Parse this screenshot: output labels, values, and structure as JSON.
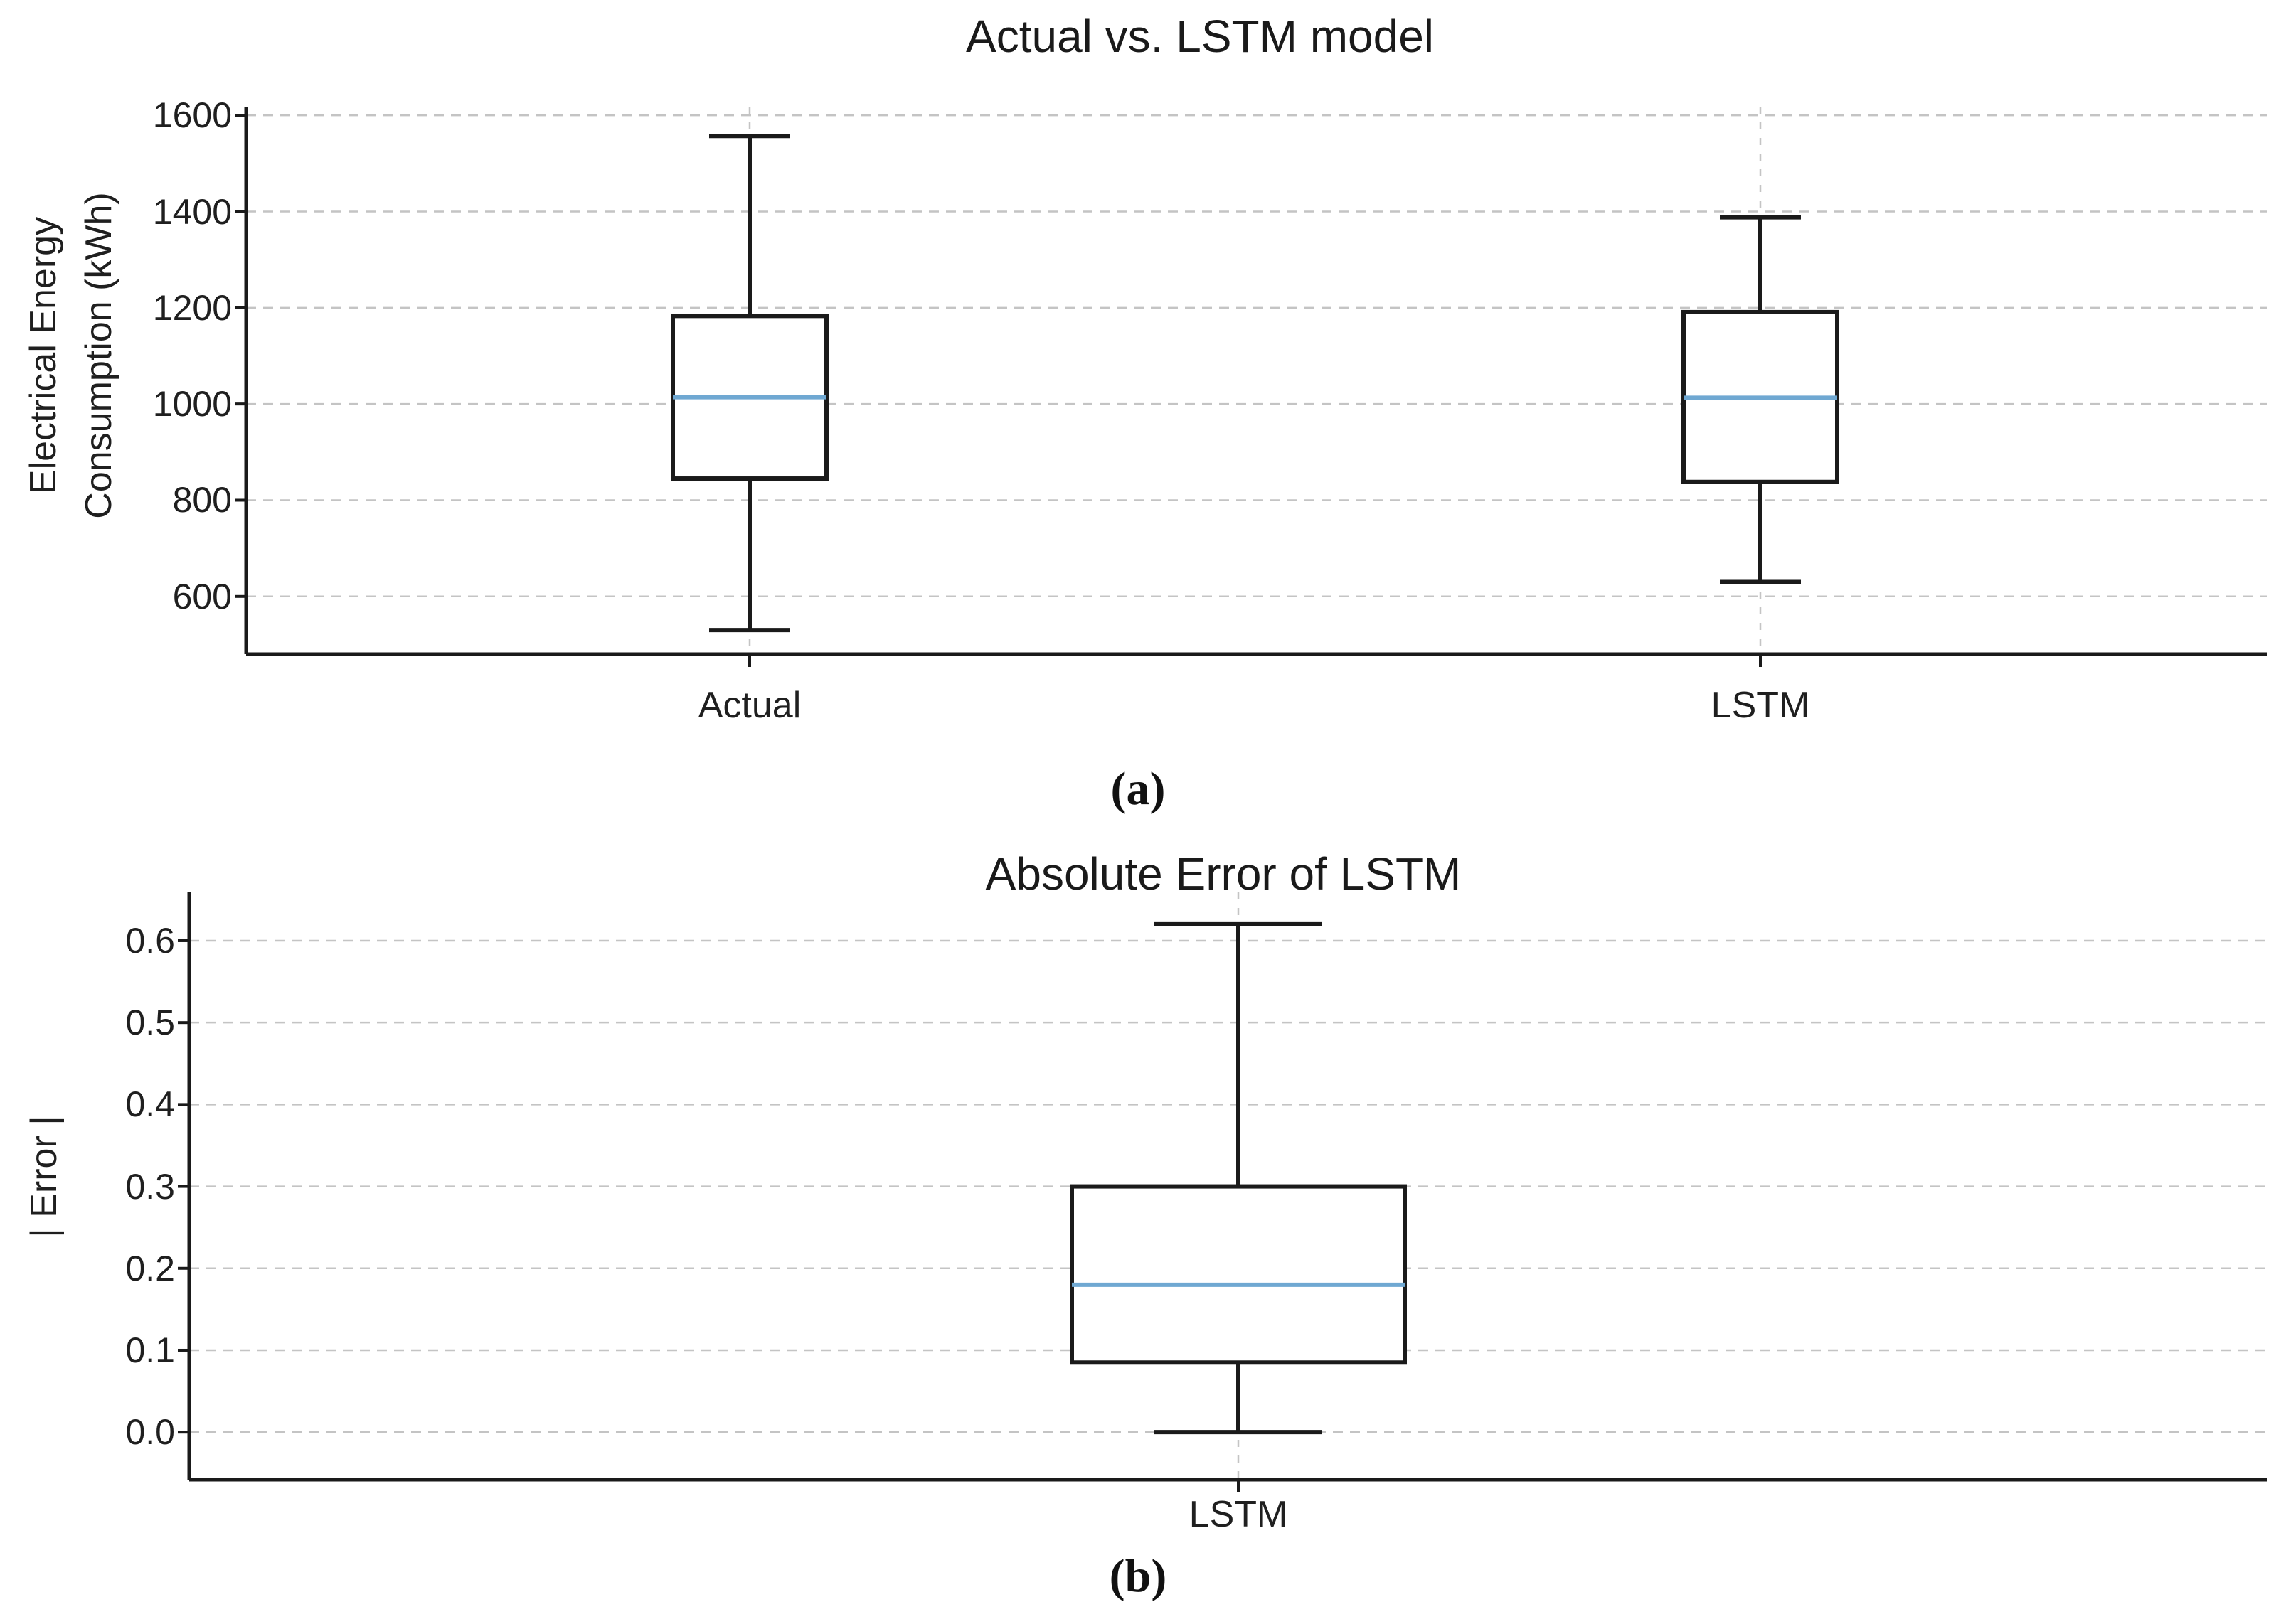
{
  "page": {
    "background": "#ffffff"
  },
  "colors": {
    "box_stroke": "#1a1a1a",
    "median": "#6fa8d2",
    "grid": "#c4c4c4",
    "text": "#1f1f1f",
    "spine": "#1a1a1a"
  },
  "chart_data": [
    {
      "type": "box",
      "title": "Actual vs. LSTM model",
      "ylabel_lines": [
        "Electrical Energy",
        "Consumption (kWh)"
      ],
      "panel_label": "(a)",
      "categories": [
        "Actual",
        "LSTM"
      ],
      "series": [
        {
          "name": "Actual",
          "whisker_low": 530,
          "q1": 845,
          "median": 1014,
          "q3": 1183,
          "whisker_high": 1557
        },
        {
          "name": "LSTM",
          "whisker_low": 630,
          "q1": 838,
          "median": 1013,
          "q3": 1191,
          "whisker_high": 1388
        }
      ],
      "yticks": [
        600,
        800,
        1000,
        1200,
        1400,
        1600
      ],
      "ytick_labels": [
        "600",
        "800",
        "1000",
        "1200",
        "1400",
        "1600"
      ],
      "ylim": [
        480,
        1618
      ],
      "grid": "dashed",
      "legend": "none"
    },
    {
      "type": "box",
      "title": "Absolute Error of LSTM",
      "ylabel_lines": [
        "| Error |"
      ],
      "panel_label": "(b)",
      "categories": [
        "LSTM"
      ],
      "series": [
        {
          "name": "LSTM",
          "whisker_low": 0.0,
          "q1": 0.085,
          "median": 0.18,
          "q3": 0.3,
          "whisker_high": 0.62
        }
      ],
      "yticks": [
        0.0,
        0.1,
        0.2,
        0.3,
        0.4,
        0.5,
        0.6
      ],
      "ytick_labels": [
        "0.0",
        "0.1",
        "0.2",
        "0.3",
        "0.4",
        "0.5",
        "0.6"
      ],
      "ylim": [
        -0.058,
        0.659
      ],
      "grid": "dashed",
      "legend": "none"
    }
  ]
}
